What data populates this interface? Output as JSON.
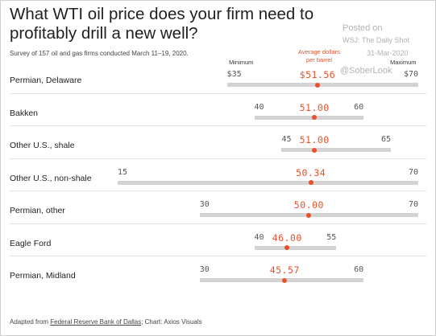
{
  "title": "What WTI oil price does your firm need to profitably drill a new well?",
  "subtitle": "Survey of 157 oil and gas firms conducted March 11–19, 2020.",
  "watermark": {
    "posted_on": "Posted on",
    "source": "WSJ: The Daily Shot",
    "date": "31-Mar-2020",
    "handle": "@SoberLook"
  },
  "headers": {
    "minimum": "Minimum",
    "average_line1": "Average dollars",
    "average_line2": "per barrel",
    "maximum": "Maximum"
  },
  "footer": {
    "prefix": "Adapted from ",
    "link": "Federal Reserve Bank of Dallas",
    "suffix": "; Chart: Axios Visuals"
  },
  "colors": {
    "accent": "#e8512a",
    "bar": "#d3d3d3"
  },
  "chart_data": {
    "type": "range-dot",
    "title": "What WTI oil price does your firm need to profitably drill a new well?",
    "xlim": [
      15,
      70
    ],
    "rows": [
      {
        "label": "Permian, Delaware",
        "min": 35,
        "avg": 51.56,
        "max": 70,
        "min_label": "$35",
        "avg_label": "$51.56",
        "max_label": "$70"
      },
      {
        "label": "Bakken",
        "min": 40,
        "avg": 51.0,
        "max": 60,
        "min_label": "40",
        "avg_label": "51.00",
        "max_label": "60"
      },
      {
        "label": "Other U.S., shale",
        "min": 45,
        "avg": 51.0,
        "max": 65,
        "min_label": "45",
        "avg_label": "51.00",
        "max_label": "65"
      },
      {
        "label": "Other U.S., non-shale",
        "min": 15,
        "avg": 50.34,
        "max": 70,
        "min_label": "15",
        "avg_label": "50.34",
        "max_label": "70"
      },
      {
        "label": "Permian, other",
        "min": 30,
        "avg": 50.0,
        "max": 70,
        "min_label": "30",
        "avg_label": "50.00",
        "max_label": "70"
      },
      {
        "label": "Eagle Ford",
        "min": 40,
        "avg": 46.0,
        "max": 55,
        "min_label": "40",
        "avg_label": "46.00",
        "max_label": "55"
      },
      {
        "label": "Permian, Midland",
        "min": 30,
        "avg": 45.57,
        "max": 60,
        "min_label": "30",
        "avg_label": "45.57",
        "max_label": "60"
      }
    ]
  }
}
